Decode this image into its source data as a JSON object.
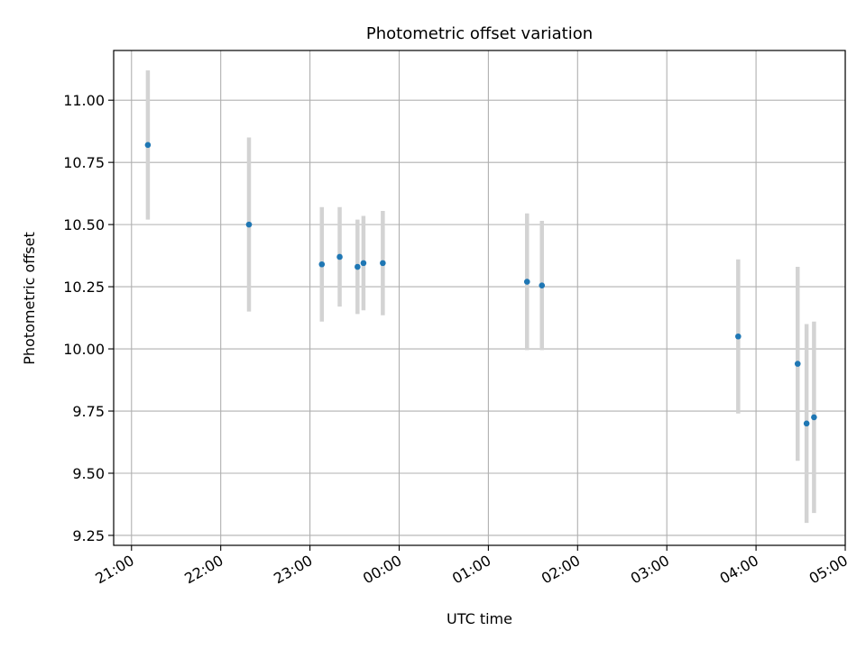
{
  "chart_data": {
    "type": "scatter",
    "title": "Photometric offset variation",
    "xlabel": "UTC time",
    "ylabel": "Photometric offset",
    "x_ticks": [
      "21:00",
      "22:00",
      "23:00",
      "00:00",
      "01:00",
      "02:00",
      "03:00",
      "04:00",
      "05:00"
    ],
    "y_ticks": [
      "9.25",
      "9.50",
      "9.75",
      "10.00",
      "10.25",
      "10.50",
      "10.75",
      "11.00"
    ],
    "xlim": [
      "20:48",
      "05:00"
    ],
    "ylim": [
      9.21,
      11.2
    ],
    "grid": true,
    "colors": {
      "point": "#1f77b4",
      "errorbar": "#d3d3d3",
      "grid": "#b0b0b0"
    },
    "points": [
      {
        "x": "21:11",
        "y": 10.82,
        "yerr": 0.3
      },
      {
        "x": "22:19",
        "y": 10.5,
        "yerr": 0.35
      },
      {
        "x": "23:08",
        "y": 10.34,
        "yerr": 0.23
      },
      {
        "x": "23:20",
        "y": 10.37,
        "yerr": 0.2
      },
      {
        "x": "23:32",
        "y": 10.33,
        "yerr": 0.19
      },
      {
        "x": "23:36",
        "y": 10.345,
        "yerr": 0.19
      },
      {
        "x": "23:49",
        "y": 10.345,
        "yerr": 0.21
      },
      {
        "x": "01:26",
        "y": 10.27,
        "yerr": 0.275
      },
      {
        "x": "01:36",
        "y": 10.255,
        "yerr": 0.26
      },
      {
        "x": "03:48",
        "y": 10.05,
        "yerr": 0.31
      },
      {
        "x": "04:28",
        "y": 9.94,
        "yerr": 0.39
      },
      {
        "x": "04:34",
        "y": 9.7,
        "yerr": 0.4
      },
      {
        "x": "04:39",
        "y": 9.725,
        "yerr": 0.385
      }
    ]
  }
}
